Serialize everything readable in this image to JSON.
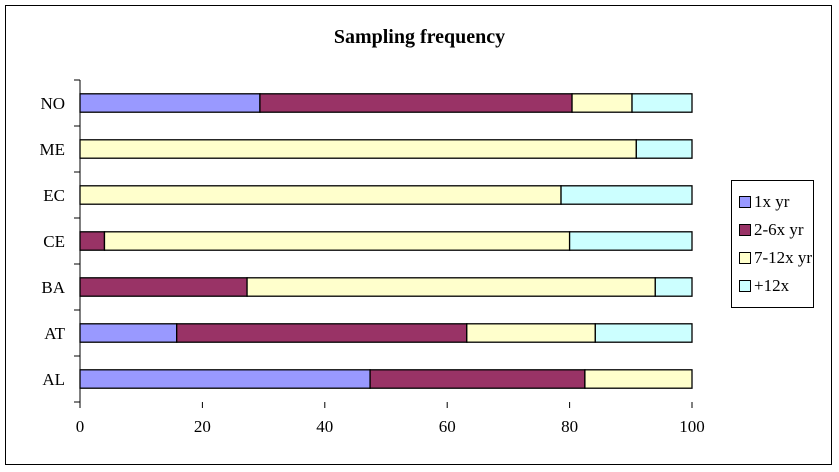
{
  "chart_data": {
    "type": "bar",
    "orientation": "horizontal",
    "stacked": true,
    "title": "Sampling frequency",
    "xlim": [
      0,
      100
    ],
    "x_ticks": [
      0,
      20,
      40,
      60,
      80,
      100
    ],
    "grid": false,
    "legend_position": "right",
    "categories": [
      "NO",
      "ME",
      "EC",
      "CE",
      "BA",
      "AT",
      "AL"
    ],
    "series": [
      {
        "name": "1x yr",
        "color": "#9999FF",
        "values": [
          29.4,
          0,
          0,
          0,
          0,
          15.8,
          47.4
        ]
      },
      {
        "name": "2-6x yr",
        "color": "#993366",
        "values": [
          51.0,
          0,
          0,
          4.0,
          27.3,
          47.4,
          35.1
        ]
      },
      {
        "name": "7-12x yr",
        "color": "#FFFFCC",
        "values": [
          9.8,
          90.9,
          78.6,
          76.0,
          66.7,
          21.0,
          17.5
        ]
      },
      {
        "name": "+12x",
        "color": "#CCFFFF",
        "values": [
          9.8,
          9.1,
          21.4,
          20.0,
          6.0,
          15.8,
          0
        ]
      }
    ]
  }
}
